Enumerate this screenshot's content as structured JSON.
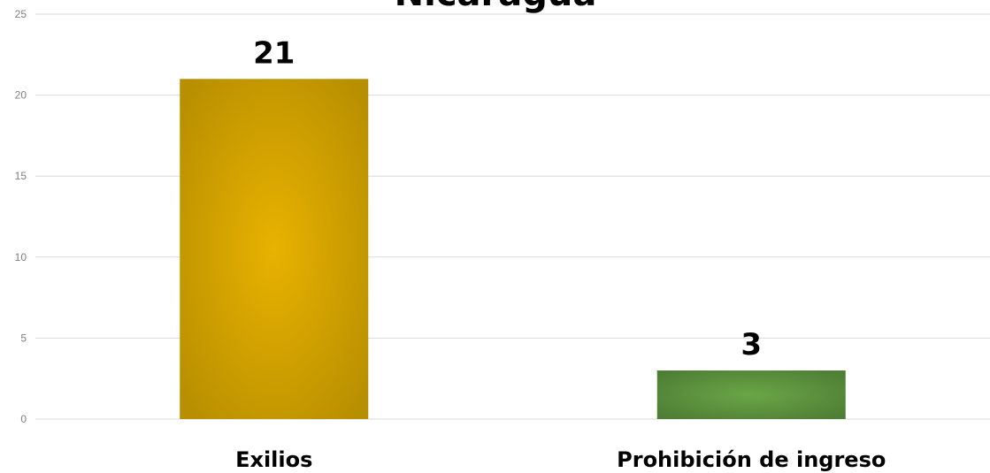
{
  "chart_data": {
    "type": "bar",
    "title": "Nicaragua",
    "categories": [
      "Exilios",
      "Prohibición de ingreso"
    ],
    "values": [
      21,
      3
    ],
    "data_labels": [
      "21",
      "3"
    ],
    "series": [
      {
        "values": [
          21,
          3
        ]
      }
    ],
    "xlabel": "",
    "ylabel": "",
    "ylim": [
      0,
      25
    ],
    "yticks": [
      0,
      5,
      10,
      15,
      20,
      25
    ],
    "grid": true,
    "legend": "none",
    "colors": {
      "bars": [
        "#d6a400",
        "#5e9a3f"
      ],
      "bar_gradients": [
        [
          "#e8b200",
          "#b88f00"
        ],
        [
          "#6aa646",
          "#4e7d34"
        ]
      ],
      "gridline": "#d9d9d9",
      "tick_text": "#7f7f7f"
    }
  }
}
